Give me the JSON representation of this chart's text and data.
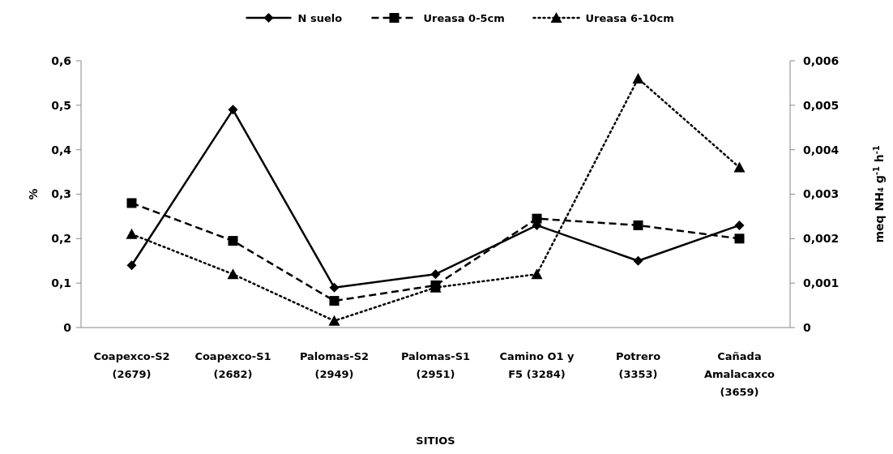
{
  "chart_data": {
    "type": "line",
    "xlabel": "SITIOS",
    "ylabel": "%",
    "y2label": "meq NH₄ g$^{-1}$ h$^{-1}$",
    "categories": [
      "Coapexco-S2 (2679)",
      "Coapexco-S1 (2682)",
      "Palomas-S2 (2949)",
      "Palomas-S1 (2951)",
      "Camino O1 y F5 (3284)",
      "Potrero (3353)",
      "Cañada Amalacaxco (3659)"
    ],
    "series": [
      {
        "name": "N suelo",
        "color": "#000000",
        "marker": "diamond",
        "line_style": "solid",
        "values": [
          0.14,
          0.49,
          0.09,
          0.12,
          0.23,
          0.15,
          0.23
        ]
      },
      {
        "name": "Ureasa 0-5cm",
        "color": "#000000",
        "marker": "square",
        "line_style": "dashed",
        "axis": "y2",
        "values": [
          0.0028,
          0.00195,
          0.0006,
          0.00095,
          0.00245,
          0.0023,
          0.002
        ]
      },
      {
        "name": "Ureasa 6-10cm",
        "color": "#000000",
        "marker": "triangle",
        "line_style": "dotted",
        "axis": "y2",
        "values": [
          0.0021,
          0.0012,
          0.00015,
          0.0009,
          0.0012,
          0.0056,
          0.0036
        ]
      }
    ],
    "ylim": [
      0,
      0.6
    ],
    "yticks": [
      0,
      {
        "value": 0.1,
        "label": "0,1"
      },
      {
        "value": 0.2,
        "label": "0,2"
      },
      {
        "value": 0.3,
        "label": "0,3"
      },
      {
        "value": 0.4,
        "label": "0,4"
      },
      {
        "value": 0.5,
        "label": "0,5"
      },
      {
        "value": 0.6,
        "label": "0,6"
      }
    ],
    "y2lim": [
      0,
      0.006
    ],
    "y2ticks": [
      0,
      {
        "value": 0.001,
        "label": "0,001"
      },
      {
        "value": 0.002,
        "label": "0,002"
      },
      {
        "value": 0.003,
        "label": "0,003"
      },
      {
        "value": 0.004,
        "label": "0,004"
      },
      {
        "value": 0.005,
        "label": "0,005"
      },
      {
        "value": 0.006,
        "label": "0,006"
      }
    ],
    "legend": "top",
    "grid": false
  }
}
